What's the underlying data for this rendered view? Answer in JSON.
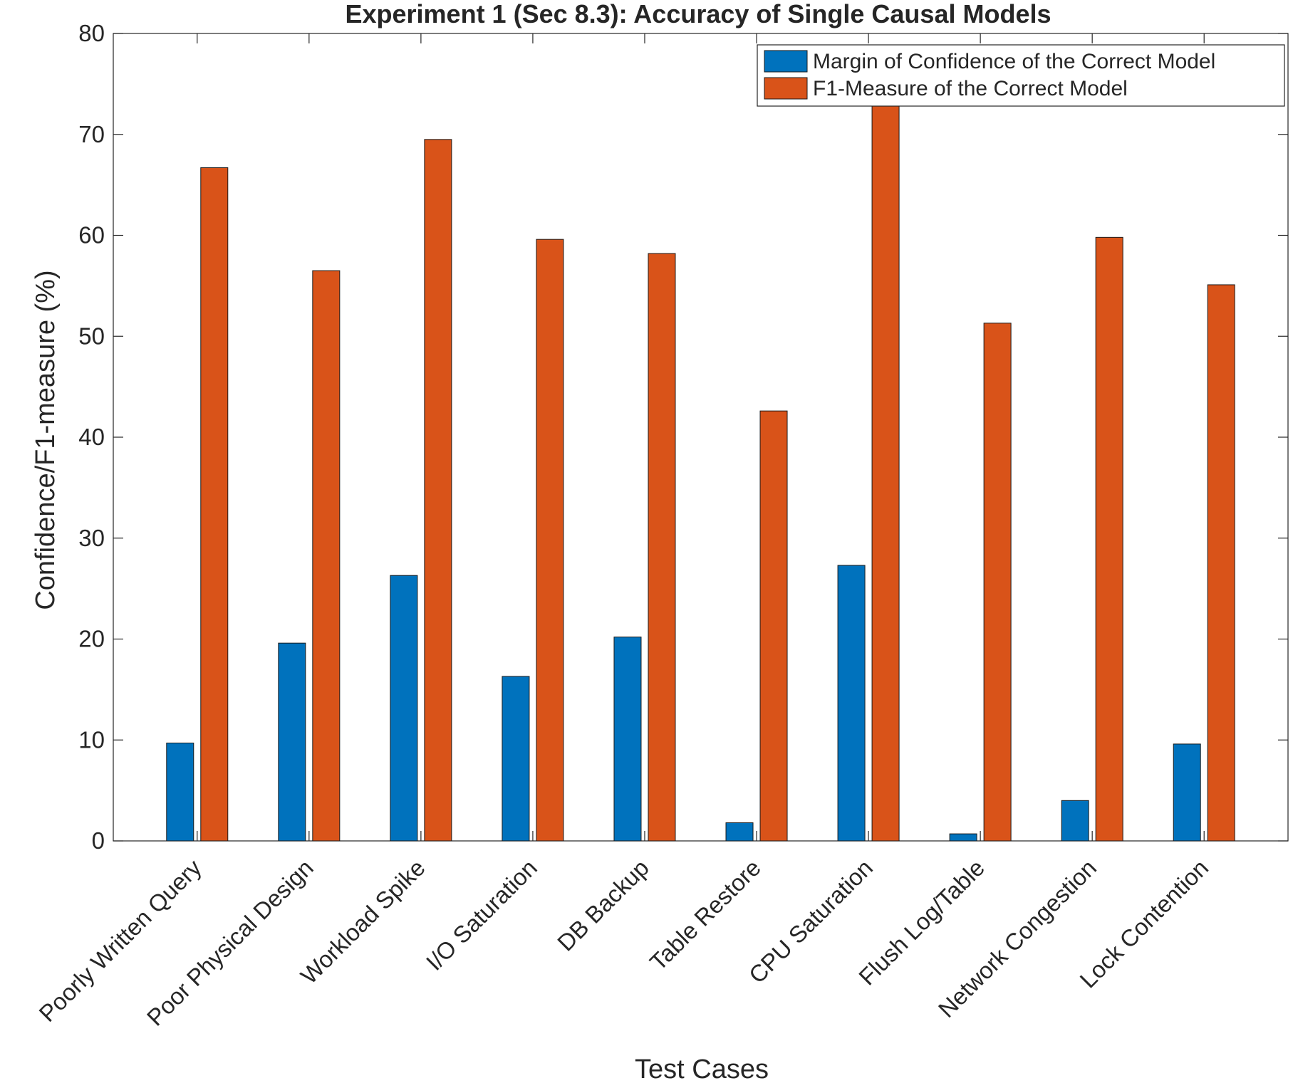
{
  "chart_data": {
    "type": "bar",
    "title": "Experiment 1 (Sec 8.3): Accuracy of Single Causal Models",
    "xlabel": "Test Cases",
    "ylabel": "Confidence/F1-measure (%)",
    "ylim": [
      0,
      80
    ],
    "yticks": [
      0,
      10,
      20,
      30,
      40,
      50,
      60,
      70,
      80
    ],
    "grid": false,
    "legend_position": "top-right",
    "categories": [
      "Poorly Written Query",
      "Poor Physical Design",
      "Workload Spike",
      "I/O Saturation",
      "DB Backup",
      "Table Restore",
      "CPU Saturation",
      "Flush Log/Table",
      "Network Congestion",
      "Lock Contention"
    ],
    "series": [
      {
        "name": "Margin of Confidence of the Correct Model",
        "color": "#0072BD",
        "values": [
          9.7,
          19.6,
          26.3,
          16.3,
          20.2,
          1.8,
          27.3,
          0.7,
          4.0,
          9.6
        ]
      },
      {
        "name": "F1-Measure of the Correct Model",
        "color": "#D95319",
        "values": [
          66.7,
          56.5,
          69.5,
          59.6,
          58.2,
          42.6,
          73.0,
          51.3,
          59.8,
          55.1
        ]
      }
    ]
  }
}
